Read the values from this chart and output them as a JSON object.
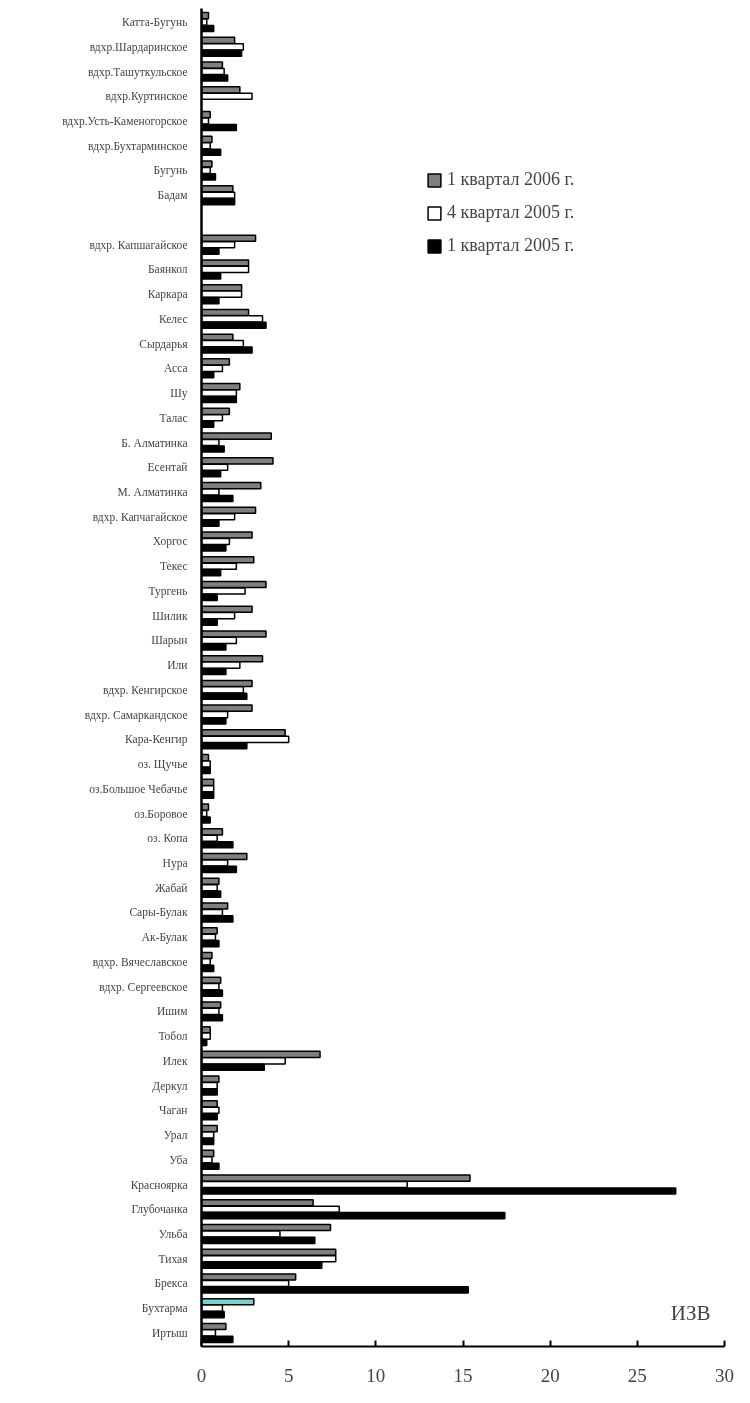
{
  "chart_data": {
    "type": "bar",
    "orientation": "horizontal",
    "xlabel": "ИЗВ",
    "categories": [
      "Катта-Бугунь",
      "вдхр.Шардаринское",
      "вдхр.Ташуткульское",
      "вдхр.Куртинское",
      "вдхр.Усть-Каменогорское",
      "вдхр.Бухтарминское",
      "Бугунь",
      "Бадам",
      null,
      "вдхр. Капшагайское",
      "Баянкол",
      "Каркара",
      "Келес",
      "Сырдарья",
      "Асса",
      "Шу",
      "Талас",
      "Б. Алматинка",
      "Есентай",
      "М. Алматинка",
      "вдхр. Капчагайское",
      "Хоргос",
      "Текес",
      "Тургень",
      "Шилик",
      "Шарын",
      "Или",
      "вдхр. Кенгирское",
      "вдхр. Самаркандское",
      "Кара-Кенгир",
      "оз. Щучье",
      "оз.Большое Чебачье",
      "оз.Боровое",
      "оз. Копа",
      "Нура",
      "Жабай",
      "Сары-Булак",
      "Ак-Булак",
      "вдхр. Вячеславское",
      "вдхр. Сергеевское",
      "Ишим",
      "Тобол",
      "Илек",
      "Деркул",
      "Чаган",
      "Урал",
      "Уба",
      "Красноярка",
      "Глубочанка",
      "Ульба",
      "Тихая",
      "Брекса",
      "Бухтарма",
      "Иртыш"
    ],
    "series": [
      {
        "name": "1 квартал 2006 г.",
        "color": "#7f7f7f",
        "colors": [
          null,
          null,
          null,
          null,
          null,
          null,
          null,
          null,
          null,
          null,
          null,
          null,
          null,
          null,
          null,
          null,
          null,
          null,
          null,
          null,
          null,
          null,
          null,
          null,
          null,
          null,
          null,
          null,
          null,
          null,
          null,
          null,
          null,
          null,
          null,
          null,
          null,
          null,
          null,
          null,
          null,
          null,
          null,
          null,
          null,
          null,
          null,
          null,
          null,
          null,
          null,
          null,
          "#7fcfcf",
          null
        ],
        "values": [
          0.4,
          1.9,
          1.2,
          2.2,
          0.5,
          0.6,
          0.6,
          1.8,
          null,
          3.1,
          2.7,
          2.3,
          2.7,
          1.8,
          1.6,
          2.2,
          1.6,
          4.0,
          4.1,
          3.4,
          3.1,
          2.9,
          3.0,
          3.7,
          2.9,
          3.7,
          3.5,
          2.9,
          2.9,
          4.8,
          0.4,
          0.7,
          0.4,
          1.2,
          2.6,
          1.0,
          1.5,
          0.9,
          0.6,
          1.1,
          1.1,
          0.5,
          6.8,
          1.0,
          0.9,
          0.9,
          0.7,
          15.4,
          6.4,
          7.4,
          7.7,
          5.4,
          3.0,
          1.4
        ]
      },
      {
        "name": "4 квартал 2005 г.",
        "color": "#ffffff",
        "values": [
          0.3,
          2.4,
          1.3,
          2.9,
          0.4,
          0.5,
          0.5,
          1.9,
          null,
          1.9,
          2.7,
          2.3,
          3.5,
          2.4,
          1.2,
          2.0,
          1.2,
          1.0,
          1.5,
          1.0,
          1.9,
          1.6,
          2.0,
          2.5,
          1.9,
          2.0,
          2.2,
          2.4,
          1.5,
          5.0,
          0.5,
          0.7,
          0.3,
          0.9,
          1.5,
          0.9,
          1.2,
          0.8,
          0.5,
          1.0,
          1.0,
          0.5,
          4.8,
          0.9,
          1.0,
          0.7,
          0.6,
          11.8,
          7.9,
          4.5,
          7.7,
          5.0,
          1.2,
          0.8
        ]
      },
      {
        "name": "1 квартал 2005 г.",
        "color": "#000000",
        "values": [
          0.7,
          2.3,
          1.5,
          null,
          2.0,
          1.1,
          0.8,
          1.9,
          null,
          1.0,
          1.1,
          1.0,
          3.7,
          2.9,
          0.7,
          2.0,
          0.7,
          1.3,
          1.1,
          1.8,
          1.0,
          1.4,
          1.1,
          0.9,
          0.9,
          1.4,
          1.4,
          2.6,
          1.4,
          2.6,
          0.5,
          0.7,
          0.5,
          1.8,
          2.0,
          1.1,
          1.8,
          1.0,
          0.7,
          1.2,
          1.2,
          0.3,
          3.6,
          0.9,
          0.9,
          0.7,
          1.0,
          27.2,
          17.4,
          6.5,
          6.9,
          15.3,
          1.3,
          1.8
        ]
      }
    ],
    "xlim": [
      0,
      30
    ],
    "xticks": [
      0,
      5,
      10,
      15,
      20,
      25,
      30
    ],
    "grid": false,
    "legend": "top right"
  }
}
